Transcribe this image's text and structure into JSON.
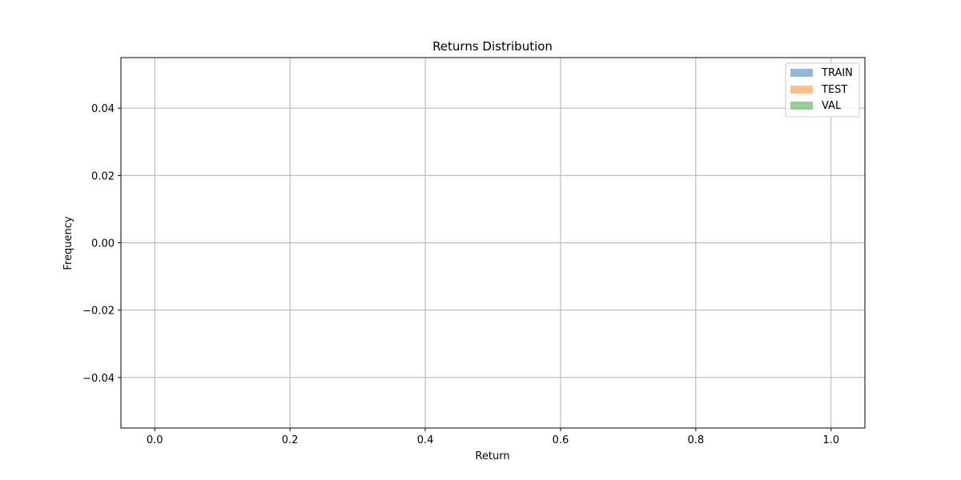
{
  "chart_data": {
    "type": "bar",
    "title": "Returns Distribution",
    "xlabel": "Return",
    "ylabel": "Frequency",
    "xlim": [
      -0.05,
      1.05
    ],
    "ylim": [
      -0.055,
      0.055
    ],
    "x_ticks": [
      0.0,
      0.2,
      0.4,
      0.6,
      0.8,
      1.0
    ],
    "x_tick_labels": [
      "0.0",
      "0.2",
      "0.4",
      "0.6",
      "0.8",
      "1.0"
    ],
    "y_ticks": [
      -0.04,
      -0.02,
      0.0,
      0.02,
      0.04
    ],
    "y_tick_labels": [
      "−0.04",
      "−0.02",
      "0.00",
      "0.02",
      "0.04"
    ],
    "grid": true,
    "legend_position": "top-right",
    "series": [
      {
        "name": "TRAIN",
        "color": "#1f77b4",
        "values": []
      },
      {
        "name": "TEST",
        "color": "#ff7f0e",
        "values": []
      },
      {
        "name": "VAL",
        "color": "#2ca02c",
        "values": []
      }
    ]
  }
}
